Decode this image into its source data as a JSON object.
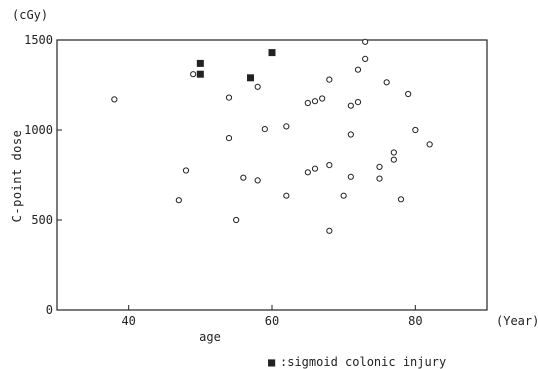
{
  "chart_data": {
    "type": "scatter",
    "title": "",
    "xlabel": "age",
    "xunit": "(Year)",
    "ylabel": "C-point dose",
    "yunit": "(cGy)",
    "xlim": [
      30,
      90
    ],
    "ylim": [
      0,
      1500
    ],
    "xticks": [
      "40",
      "60",
      "80"
    ],
    "yticks": [
      "0",
      "500",
      "1000",
      "1500"
    ],
    "grid": false,
    "legend": {
      "placement": "bottom-center",
      "marker": "■",
      "label": ":sigmoid colonic injury"
    },
    "series": [
      {
        "marker": "open-circle",
        "points": [
          [
            38,
            1170
          ],
          [
            47,
            610
          ],
          [
            48,
            775
          ],
          [
            49,
            1310
          ],
          [
            54,
            1180
          ],
          [
            54,
            955
          ],
          [
            55,
            500
          ],
          [
            56,
            735
          ],
          [
            58,
            1240
          ],
          [
            58,
            720
          ],
          [
            59,
            1005
          ],
          [
            62,
            635
          ],
          [
            62,
            1020
          ],
          [
            65,
            1150
          ],
          [
            65,
            765
          ],
          [
            66,
            785
          ],
          [
            66,
            1160
          ],
          [
            67,
            1175
          ],
          [
            68,
            1280
          ],
          [
            68,
            805
          ],
          [
            68,
            440
          ],
          [
            70,
            635
          ],
          [
            71,
            975
          ],
          [
            71,
            1135
          ],
          [
            71,
            740
          ],
          [
            72,
            1335
          ],
          [
            72,
            1155
          ],
          [
            73,
            1395
          ],
          [
            73,
            1490
          ],
          [
            75,
            795
          ],
          [
            75,
            730
          ],
          [
            76,
            1265
          ],
          [
            77,
            835
          ],
          [
            77,
            875
          ],
          [
            78,
            615
          ],
          [
            79,
            1200
          ],
          [
            80,
            1000
          ],
          [
            82,
            920
          ]
        ]
      },
      {
        "name": "sigmoid colonic injury",
        "marker": "filled-square",
        "points": [
          [
            50,
            1370
          ],
          [
            50,
            1310
          ],
          [
            57,
            1290
          ],
          [
            60,
            1430
          ]
        ]
      }
    ]
  },
  "colors": {
    "marker": "#222222",
    "axis": "#222222",
    "background": "#ffffff"
  }
}
